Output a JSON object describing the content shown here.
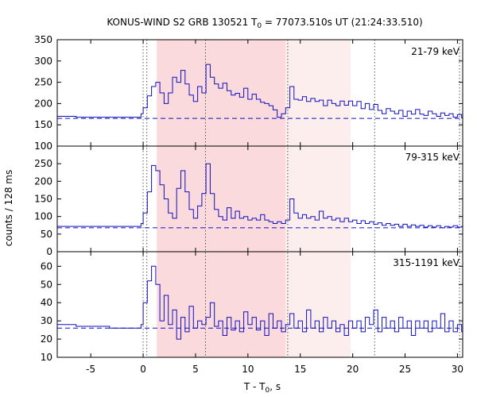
{
  "chart_data": {
    "type": "line",
    "title": "KONUS-WIND S2 GRB 130521 T",
    "title_sub": "0",
    "title_rest": " = 77073.510s UT (21:24:33.510)",
    "xlabel": "T - T",
    "xlabel_sub": "0",
    "xlabel_rest": ", s",
    "ylabel": "counts / 128 ms",
    "xlim": [
      -8.2,
      30.5
    ],
    "x_ticks": [
      -5,
      0,
      5,
      10,
      15,
      20,
      25,
      30
    ],
    "x_tick_labels": [
      "-5",
      "0",
      "5",
      "10",
      "15",
      "20",
      "25",
      "30"
    ],
    "grid": false,
    "series_color": "#1010c0",
    "shaded_intervals": [
      {
        "x0": 1.3,
        "x1": 13.6,
        "color": "#fadadd"
      },
      {
        "x0": 13.6,
        "x1": 19.8,
        "color": "#fdeeee"
      }
    ],
    "vertical_lines": [
      0.0,
      0.35,
      5.95,
      13.8,
      22.1,
      30.2
    ],
    "panels": [
      {
        "band": "21-79 keV",
        "ylim": [
          100,
          350
        ],
        "y_ticks": [
          100,
          150,
          200,
          250,
          300,
          350
        ],
        "y_tick_labels": [
          "100",
          "150",
          "200",
          "250",
          "300",
          "350"
        ],
        "background": 165,
        "pre_x": [
          -8.2,
          -6.4,
          -4.8,
          -3.2,
          -1.6,
          -0.2
        ],
        "pre_y": [
          170,
          168,
          168,
          168,
          168,
          176
        ],
        "points": [
          [
            0.0,
            190
          ],
          [
            0.4,
            218
          ],
          [
            0.8,
            240
          ],
          [
            1.2,
            250
          ],
          [
            1.6,
            225
          ],
          [
            2.0,
            200
          ],
          [
            2.4,
            225
          ],
          [
            2.8,
            262
          ],
          [
            3.2,
            250
          ],
          [
            3.6,
            278
          ],
          [
            4.0,
            246
          ],
          [
            4.4,
            220
          ],
          [
            4.8,
            205
          ],
          [
            5.2,
            240
          ],
          [
            5.6,
            225
          ],
          [
            6.0,
            292
          ],
          [
            6.4,
            262
          ],
          [
            6.8,
            246
          ],
          [
            7.2,
            236
          ],
          [
            7.6,
            248
          ],
          [
            8.0,
            230
          ],
          [
            8.4,
            220
          ],
          [
            8.8,
            224
          ],
          [
            9.2,
            215
          ],
          [
            9.6,
            236
          ],
          [
            10.0,
            210
          ],
          [
            10.4,
            222
          ],
          [
            10.8,
            210
          ],
          [
            11.2,
            203
          ],
          [
            11.6,
            200
          ],
          [
            12.0,
            195
          ],
          [
            12.4,
            185
          ],
          [
            12.8,
            168
          ],
          [
            13.2,
            176
          ],
          [
            13.6,
            190
          ],
          [
            14.0,
            240
          ],
          [
            14.4,
            210
          ],
          [
            14.8,
            208
          ],
          [
            15.2,
            216
          ],
          [
            15.6,
            205
          ],
          [
            16.0,
            212
          ],
          [
            16.4,
            205
          ],
          [
            16.8,
            208
          ],
          [
            17.2,
            195
          ],
          [
            17.6,
            208
          ],
          [
            18.0,
            200
          ],
          [
            18.4,
            195
          ],
          [
            18.8,
            206
          ],
          [
            19.2,
            196
          ],
          [
            19.6,
            206
          ],
          [
            20.0,
            195
          ],
          [
            20.4,
            205
          ],
          [
            20.8,
            188
          ],
          [
            21.2,
            200
          ],
          [
            21.6,
            186
          ],
          [
            22.0,
            198
          ],
          [
            22.4,
            184
          ],
          [
            22.8,
            176
          ],
          [
            23.2,
            188
          ],
          [
            23.6,
            182
          ],
          [
            24.0,
            176
          ],
          [
            24.4,
            184
          ],
          [
            24.8,
            170
          ],
          [
            25.2,
            182
          ],
          [
            25.6,
            175
          ],
          [
            26.0,
            186
          ],
          [
            26.4,
            175
          ],
          [
            26.8,
            172
          ],
          [
            27.2,
            182
          ],
          [
            27.6,
            176
          ],
          [
            28.0,
            170
          ],
          [
            28.4,
            178
          ],
          [
            28.8,
            172
          ],
          [
            29.2,
            176
          ],
          [
            29.6,
            168
          ],
          [
            30.0,
            174
          ],
          [
            30.4,
            166
          ]
        ]
      },
      {
        "band": "79-315 keV",
        "ylim": [
          0,
          300
        ],
        "y_ticks": [
          0,
          50,
          100,
          150,
          200,
          250
        ],
        "y_tick_labels": [
          "0",
          "50",
          "100",
          "150",
          "200",
          "250"
        ],
        "background": 68,
        "pre_x": [
          -8.2,
          -6.4,
          -4.8,
          -3.2,
          -1.6,
          -0.2
        ],
        "pre_y": [
          72,
          72,
          72,
          72,
          72,
          80
        ],
        "points": [
          [
            0.0,
            110
          ],
          [
            0.4,
            170
          ],
          [
            0.8,
            245
          ],
          [
            1.2,
            230
          ],
          [
            1.6,
            190
          ],
          [
            2.0,
            150
          ],
          [
            2.4,
            110
          ],
          [
            2.8,
            95
          ],
          [
            3.2,
            180
          ],
          [
            3.6,
            230
          ],
          [
            4.0,
            170
          ],
          [
            4.4,
            120
          ],
          [
            4.8,
            95
          ],
          [
            5.2,
            130
          ],
          [
            5.6,
            165
          ],
          [
            6.0,
            250
          ],
          [
            6.4,
            165
          ],
          [
            6.8,
            120
          ],
          [
            7.2,
            100
          ],
          [
            7.6,
            90
          ],
          [
            8.0,
            125
          ],
          [
            8.4,
            95
          ],
          [
            8.8,
            115
          ],
          [
            9.2,
            95
          ],
          [
            9.6,
            100
          ],
          [
            10.0,
            90
          ],
          [
            10.4,
            95
          ],
          [
            10.8,
            90
          ],
          [
            11.2,
            105
          ],
          [
            11.6,
            90
          ],
          [
            12.0,
            85
          ],
          [
            12.4,
            80
          ],
          [
            12.8,
            85
          ],
          [
            13.2,
            80
          ],
          [
            13.6,
            90
          ],
          [
            14.0,
            150
          ],
          [
            14.4,
            110
          ],
          [
            14.8,
            95
          ],
          [
            15.2,
            105
          ],
          [
            15.6,
            95
          ],
          [
            16.0,
            100
          ],
          [
            16.4,
            90
          ],
          [
            16.8,
            115
          ],
          [
            17.2,
            95
          ],
          [
            17.6,
            100
          ],
          [
            18.0,
            90
          ],
          [
            18.4,
            95
          ],
          [
            18.8,
            85
          ],
          [
            19.2,
            95
          ],
          [
            19.6,
            85
          ],
          [
            20.0,
            90
          ],
          [
            20.4,
            80
          ],
          [
            20.8,
            88
          ],
          [
            21.2,
            80
          ],
          [
            21.6,
            85
          ],
          [
            22.0,
            78
          ],
          [
            22.4,
            82
          ],
          [
            22.8,
            75
          ],
          [
            23.2,
            80
          ],
          [
            23.6,
            75
          ],
          [
            24.0,
            78
          ],
          [
            24.4,
            72
          ],
          [
            24.8,
            78
          ],
          [
            25.2,
            72
          ],
          [
            25.6,
            76
          ],
          [
            26.0,
            72
          ],
          [
            26.4,
            75
          ],
          [
            26.8,
            70
          ],
          [
            27.2,
            74
          ],
          [
            27.6,
            70
          ],
          [
            28.0,
            74
          ],
          [
            28.4,
            68
          ],
          [
            28.8,
            72
          ],
          [
            29.2,
            70
          ],
          [
            29.6,
            74
          ],
          [
            30.0,
            70
          ],
          [
            30.4,
            72
          ]
        ]
      },
      {
        "band": "315-1191 keV",
        "ylim": [
          10,
          68
        ],
        "y_ticks": [
          10,
          20,
          30,
          40,
          50,
          60
        ],
        "y_tick_labels": [
          "10",
          "20",
          "30",
          "40",
          "50",
          "60"
        ],
        "background": 26,
        "pre_x": [
          -8.2,
          -6.4,
          -4.8,
          -3.2,
          -1.6,
          -0.2
        ],
        "pre_y": [
          28,
          27,
          27,
          26,
          26,
          28
        ],
        "points": [
          [
            0.0,
            40
          ],
          [
            0.4,
            52
          ],
          [
            0.8,
            60
          ],
          [
            1.2,
            50
          ],
          [
            1.6,
            30
          ],
          [
            2.0,
            44
          ],
          [
            2.4,
            28
          ],
          [
            2.8,
            36
          ],
          [
            3.2,
            20
          ],
          [
            3.6,
            32
          ],
          [
            4.0,
            24
          ],
          [
            4.4,
            38
          ],
          [
            4.8,
            26
          ],
          [
            5.2,
            30
          ],
          [
            5.6,
            28
          ],
          [
            6.0,
            32
          ],
          [
            6.4,
            40
          ],
          [
            6.8,
            27
          ],
          [
            7.2,
            30
          ],
          [
            7.6,
            22
          ],
          [
            8.0,
            32
          ],
          [
            8.4,
            25
          ],
          [
            8.8,
            30
          ],
          [
            9.2,
            24
          ],
          [
            9.6,
            35
          ],
          [
            10.0,
            28
          ],
          [
            10.4,
            32
          ],
          [
            10.8,
            25
          ],
          [
            11.2,
            30
          ],
          [
            11.6,
            22
          ],
          [
            12.0,
            34
          ],
          [
            12.4,
            26
          ],
          [
            12.8,
            30
          ],
          [
            13.2,
            24
          ],
          [
            13.6,
            28
          ],
          [
            14.0,
            34
          ],
          [
            14.4,
            26
          ],
          [
            14.8,
            30
          ],
          [
            15.2,
            24
          ],
          [
            15.6,
            36
          ],
          [
            16.0,
            26
          ],
          [
            16.4,
            30
          ],
          [
            16.8,
            24
          ],
          [
            17.2,
            32
          ],
          [
            17.6,
            26
          ],
          [
            18.0,
            30
          ],
          [
            18.4,
            24
          ],
          [
            18.8,
            28
          ],
          [
            19.2,
            22
          ],
          [
            19.6,
            30
          ],
          [
            20.0,
            26
          ],
          [
            20.4,
            30
          ],
          [
            20.8,
            24
          ],
          [
            21.2,
            32
          ],
          [
            21.6,
            28
          ],
          [
            22.0,
            36
          ],
          [
            22.4,
            24
          ],
          [
            22.8,
            32
          ],
          [
            23.2,
            26
          ],
          [
            23.6,
            30
          ],
          [
            24.0,
            24
          ],
          [
            24.4,
            32
          ],
          [
            24.8,
            26
          ],
          [
            25.2,
            30
          ],
          [
            25.6,
            22
          ],
          [
            26.0,
            30
          ],
          [
            26.4,
            26
          ],
          [
            26.8,
            30
          ],
          [
            27.2,
            24
          ],
          [
            27.6,
            30
          ],
          [
            28.0,
            26
          ],
          [
            28.4,
            34
          ],
          [
            28.8,
            24
          ],
          [
            29.2,
            30
          ],
          [
            29.6,
            24
          ],
          [
            30.0,
            28
          ],
          [
            30.4,
            24
          ]
        ]
      }
    ]
  }
}
